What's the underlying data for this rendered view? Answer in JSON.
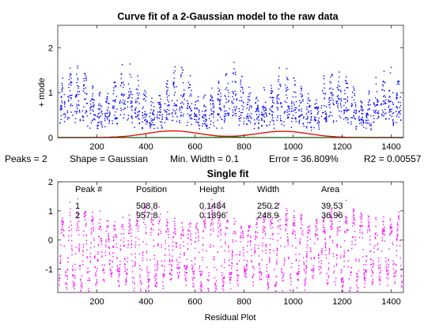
{
  "chart_data": [
    {
      "type": "scatter",
      "title": "Curve fit of a 2-Gaussian model to the raw data",
      "xlabel": "",
      "ylabel": "+ mode",
      "xlim": [
        40,
        1450
      ],
      "ylim": [
        0,
        2.5
      ],
      "xticks": [
        200,
        400,
        600,
        800,
        1000,
        1200,
        1400
      ],
      "yticks": [
        0,
        1,
        2
      ],
      "grid": false,
      "colors": {
        "data": "#0000ff",
        "fit": "#ff0000",
        "component": "#00a000"
      },
      "series": []
    },
    {
      "type": "scatter",
      "title": "Single fit",
      "xlabel": "Residual Plot",
      "ylabel": "",
      "xlim": [
        40,
        1450
      ],
      "ylim": [
        -1.8,
        2.0
      ],
      "xticks": [
        200,
        400,
        600,
        800,
        1000,
        1200,
        1400
      ],
      "yticks": [
        -1,
        0,
        1,
        2
      ],
      "grid": false,
      "colors": {
        "residual": "#ff00ff"
      },
      "series": []
    }
  ],
  "fit_summary": {
    "peaks": "Peaks = 2",
    "shape": "Shape = Gaussian",
    "min_width": "Min. Width = 0.1",
    "error": "Error = 36.809%",
    "r2": "R2 = 0.00557"
  },
  "results_table": {
    "headers": [
      "Peak #",
      "Position",
      "Height",
      "Width",
      "Area"
    ],
    "rows": [
      [
        "1",
        "508.8",
        "0.1484",
        "250.2",
        "39.53"
      ],
      [
        "2",
        "957.8",
        "0.1396",
        "248.9",
        "36.96"
      ]
    ]
  }
}
